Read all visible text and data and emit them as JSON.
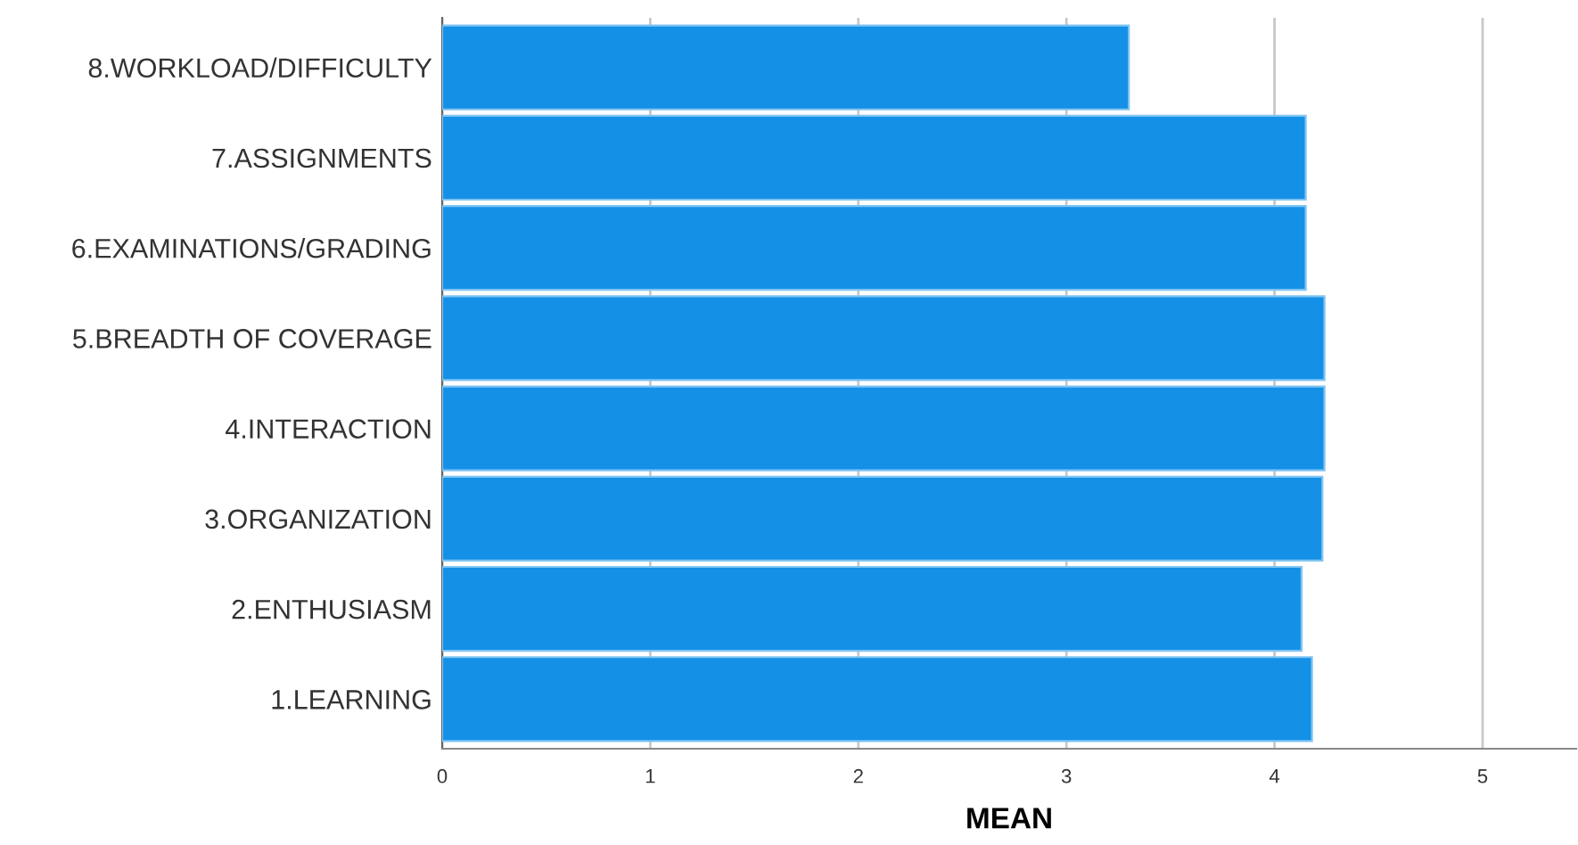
{
  "chart_data": {
    "type": "bar",
    "orientation": "horizontal",
    "xlabel": "MEAN",
    "categories": [
      "8.WORKLOAD/DIFFICULTY",
      "7.ASSIGNMENTS",
      "6.EXAMINATIONS/GRADING",
      "5.BREADTH OF COVERAGE",
      "4.INTERACTION",
      "3.ORGANIZATION",
      "2.ENTHUSIASM",
      "1.LEARNING"
    ],
    "values": [
      3.3,
      4.15,
      4.15,
      4.24,
      4.24,
      4.23,
      4.13,
      4.18
    ],
    "color": "#1490e6",
    "xlim": [
      0,
      5.45
    ],
    "xticks": [
      0,
      1,
      2,
      3,
      4,
      5
    ],
    "grid": "x"
  }
}
